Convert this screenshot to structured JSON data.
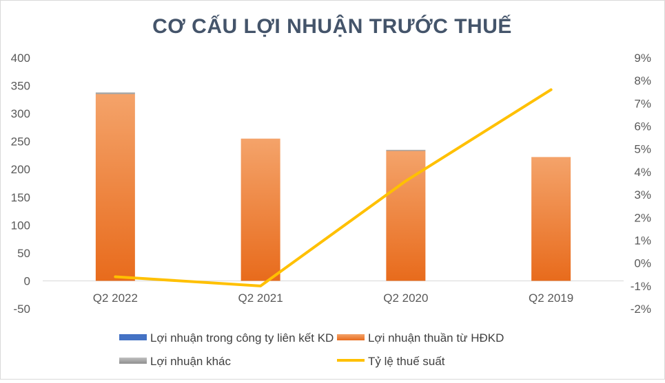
{
  "chart_data": {
    "type": "bar",
    "title": "CƠ CẤU LỢI NHUẬN TRƯỚC THUẾ",
    "categories": [
      "Q2 2022",
      "Q2 2021",
      "Q2 2020",
      "Q2 2019"
    ],
    "ylim": [
      -50,
      400
    ],
    "yticks": [
      "400",
      "350",
      "300",
      "250",
      "200",
      "150",
      "100",
      "50",
      "0",
      "-50"
    ],
    "y2lim": [
      -2,
      9
    ],
    "y2ticks": [
      "9%",
      "8%",
      "7%",
      "6%",
      "5%",
      "4%",
      "3%",
      "2%",
      "1%",
      "0%",
      "-1%",
      "-2%"
    ],
    "stacked": true,
    "series": [
      {
        "name": "Lợi nhuận trong công ty liên kết KD",
        "type": "bar",
        "color": "#4472c4",
        "values": [
          0,
          0,
          0,
          0
        ]
      },
      {
        "name": "Lợi nhuận thuần từ HĐKD",
        "type": "bar",
        "color": "#ed7d31",
        "values": [
          335,
          255,
          233,
          222
        ]
      },
      {
        "name": "Lợi nhuận khác",
        "type": "bar",
        "color": "#a5a5a5",
        "values": [
          3,
          0,
          2,
          0
        ]
      },
      {
        "name": "Tỷ lệ thuế suất",
        "type": "line",
        "axis": "secondary",
        "color": "#ffc000",
        "values": [
          -0.6,
          -1.0,
          3.6,
          7.6
        ]
      }
    ],
    "legend_position": "bottom",
    "grid": false
  }
}
